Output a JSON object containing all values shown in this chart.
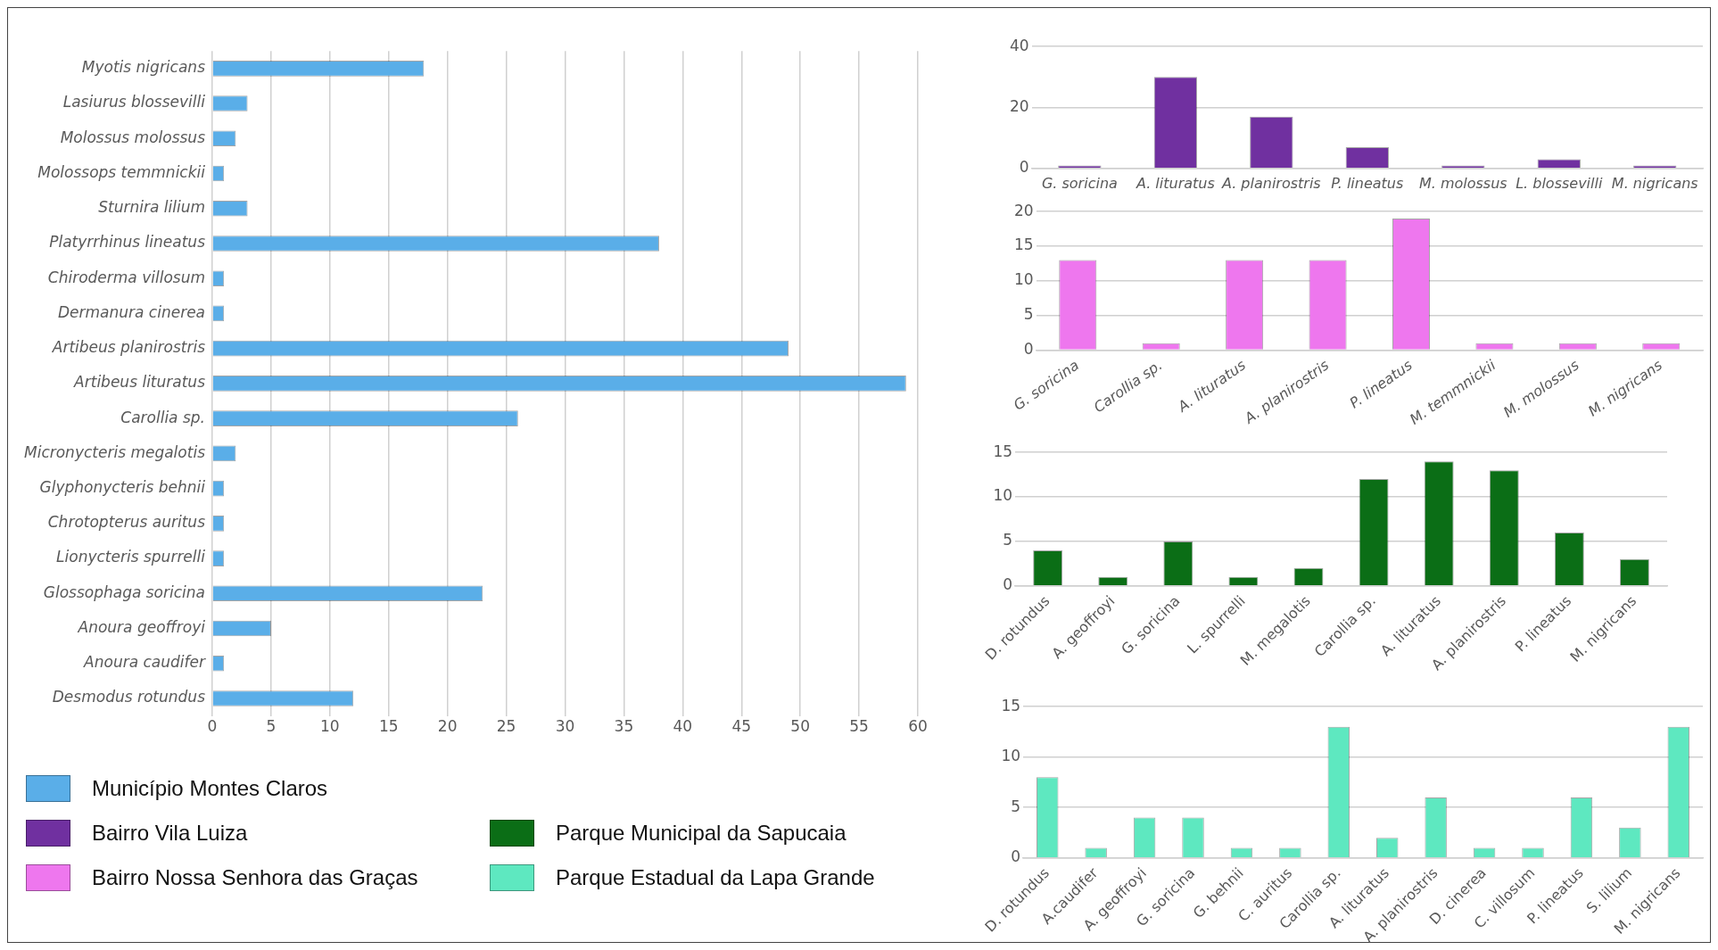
{
  "chart_data": [
    {
      "type": "bar",
      "orientation": "horizontal",
      "categories": [
        "Myotis nigricans",
        "Lasiurus blossevilli",
        "Molossus molossus",
        "Molossops temmnickii",
        "Sturnira lilium",
        "Platyrrhinus lineatus",
        "Chiroderma villosum",
        "Dermanura cinerea",
        "Artibeus planirostris",
        "Artibeus lituratus",
        "Carollia sp.",
        "Micronycteris megalotis",
        "Glyphonycteris behnii",
        "Chrotopterus auritus",
        "Lionycteris spurrelli",
        "Glossophaga soricina",
        "Anoura geoffroyi",
        "Anoura caudifer",
        "Desmodus rotundus"
      ],
      "series": [
        {
          "name": "Município Montes Claros",
          "color": "#5aaee8",
          "values": [
            18,
            3,
            2,
            1,
            3,
            38,
            1,
            1,
            49,
            59,
            26,
            2,
            1,
            1,
            1,
            23,
            5,
            1,
            12
          ]
        }
      ],
      "xlim": [
        0,
        60
      ],
      "xticks": [
        0,
        5,
        10,
        15,
        20,
        25,
        30,
        35,
        40,
        45,
        50,
        55,
        60
      ],
      "grid": "x",
      "legend": "bottom left"
    },
    {
      "type": "bar",
      "categories": [
        "G. soricina",
        "A. lituratus",
        "A. planirostris",
        "P. lineatus",
        "M. molossus",
        "L. blossevilli",
        "M. nigricans"
      ],
      "series": [
        {
          "name": "Bairro Vila Luiza",
          "color": "#7030a0",
          "values": [
            1,
            30,
            17,
            7,
            1,
            3,
            1
          ]
        }
      ],
      "ylim": [
        0,
        40
      ],
      "yticks": [
        0,
        20,
        40
      ],
      "grid": "y",
      "legend": "bottom left"
    },
    {
      "type": "bar",
      "categories": [
        "G. soricina",
        "Carollia sp.",
        "A. lituratus",
        "A. planirostris",
        "P. lineatus",
        "M. temmnickii",
        "M. molossus",
        "M. nigricans"
      ],
      "series": [
        {
          "name": "Bairro Nossa Senhora das Graças",
          "color": "#ee77ee",
          "values": [
            13,
            1,
            13,
            13,
            19,
            1,
            1,
            1
          ]
        }
      ],
      "ylim": [
        0,
        20
      ],
      "yticks": [
        0,
        5,
        10,
        15,
        20
      ],
      "grid": "y",
      "legend": "bottom left"
    },
    {
      "type": "bar",
      "categories": [
        "D. rotundus",
        "A. geoffroyi",
        "G. soricina",
        "L. spurrelli",
        "M. megalotis",
        "Carollia sp.",
        "A. lituratus",
        "A. planirostris",
        "P. lineatus",
        "M. nigricans"
      ],
      "series": [
        {
          "name": "Parque Municipal da Sapucaia",
          "color": "#0b6e16",
          "values": [
            4,
            1,
            5,
            1,
            2,
            12,
            14,
            13,
            6,
            3
          ]
        }
      ],
      "ylim": [
        0,
        15
      ],
      "yticks": [
        0,
        5,
        10,
        15
      ],
      "grid": "y",
      "legend": "bottom left"
    },
    {
      "type": "bar",
      "categories": [
        "D. rotundus",
        "A.caudifer",
        "A. geoffroyi",
        "G. soricina",
        "G. behnii",
        "C. auritus",
        "Carollia sp.",
        "A. lituratus",
        "A. planirostris",
        "D. cinerea",
        "C. villosum",
        "P. lineatus",
        "S. lilium",
        "M. nigricans"
      ],
      "series": [
        {
          "name": "Parque Estadual da Lapa Grande",
          "color": "#5ee8c0",
          "values": [
            8,
            1,
            4,
            4,
            1,
            1,
            13,
            2,
            6,
            1,
            1,
            6,
            3,
            13
          ]
        }
      ],
      "ylim": [
        0,
        15
      ],
      "yticks": [
        0,
        5,
        10,
        15
      ],
      "grid": "y",
      "legend": "bottom left"
    }
  ]
}
